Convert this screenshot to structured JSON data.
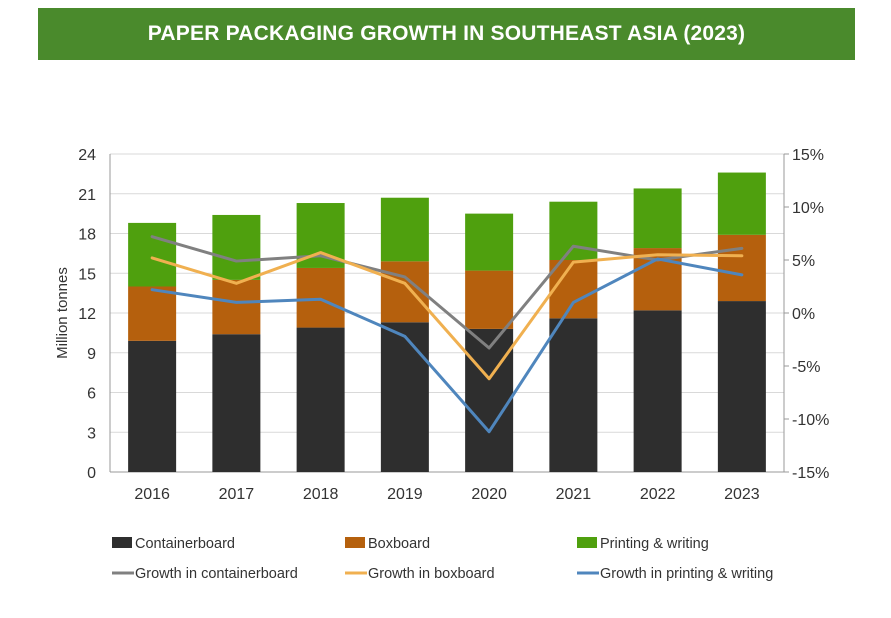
{
  "header": {
    "title": "PAPER PACKAGING GROWTH IN SOUTHEAST ASIA (2023)"
  },
  "chart_data": {
    "type": "bar",
    "stacked": true,
    "title": "PAPER PACKAGING GROWTH IN SOUTHEAST ASIA (2023)",
    "categories": [
      "2016",
      "2017",
      "2018",
      "2019",
      "2020",
      "2021",
      "2022",
      "2023"
    ],
    "ylabel": "Million tonnes",
    "ylim": [
      0,
      24
    ],
    "y_ticks": [
      "0",
      "3",
      "6",
      "9",
      "12",
      "15",
      "18",
      "21",
      "24"
    ],
    "y2lim": [
      -15,
      15
    ],
    "y2_ticks": [
      "-15%",
      "-10%",
      "-5%",
      "0%",
      "5%",
      "10%",
      "15%"
    ],
    "series": [
      {
        "name": "Containerboard",
        "kind": "bar",
        "color": "#2e2e2e",
        "values": [
          9.9,
          10.4,
          10.9,
          11.3,
          10.8,
          11.6,
          12.2,
          12.9
        ]
      },
      {
        "name": "Boxboard",
        "kind": "bar",
        "color": "#b5600d",
        "values": [
          4.1,
          4.1,
          4.5,
          4.6,
          4.4,
          4.4,
          4.7,
          5.0
        ]
      },
      {
        "name": "Printing & writing",
        "kind": "bar",
        "color": "#4fa00e",
        "values": [
          4.8,
          4.9,
          4.9,
          4.8,
          4.3,
          4.4,
          4.5,
          4.7
        ]
      },
      {
        "name": "Growth in containerboard",
        "kind": "line",
        "axis": "y2",
        "color": "#808080",
        "values": [
          7.2,
          4.9,
          5.4,
          3.4,
          -3.3,
          6.3,
          5.0,
          6.1
        ]
      },
      {
        "name": "Growth in boxboard",
        "kind": "line",
        "axis": "y2",
        "color": "#f0b050",
        "values": [
          5.2,
          2.8,
          5.7,
          2.8,
          -6.2,
          4.8,
          5.5,
          5.4
        ]
      },
      {
        "name": "Growth in printing & writing",
        "kind": "line",
        "axis": "y2",
        "color": "#4f86bd",
        "values": [
          2.2,
          1.0,
          1.3,
          -2.2,
          -11.2,
          1.0,
          5.1,
          3.6
        ]
      }
    ],
    "legend_position": "bottom"
  }
}
